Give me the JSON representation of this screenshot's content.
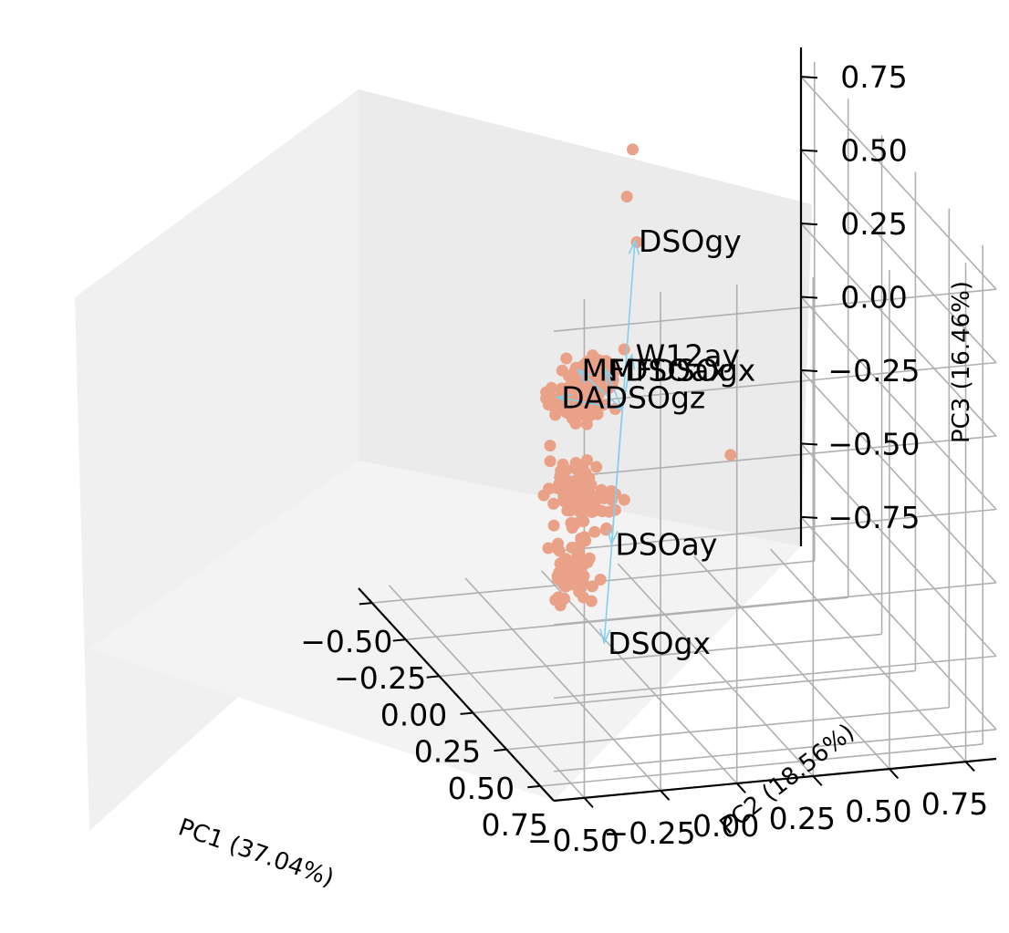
{
  "chart_data": {
    "type": "scatter",
    "subtype": "3d-pca-biplot",
    "title": "",
    "axes": {
      "x": {
        "label": "PC1 (37.04%)",
        "ticks": [
          "−0.50",
          "−0.25",
          "0.00",
          "0.25",
          "0.50",
          "0.75"
        ],
        "range": [
          -0.6,
          0.85
        ]
      },
      "y": {
        "label": "PC2 (18.56%)",
        "ticks": [
          "−0.50",
          "−0.25",
          "0.00",
          "0.25",
          "0.50",
          "0.75"
        ],
        "range": [
          -0.6,
          0.85
        ]
      },
      "z": {
        "label": "PC3 (16.46%)",
        "ticks": [
          "−0.75",
          "−0.50",
          "−0.25",
          "0.00",
          "0.25",
          "0.50",
          "0.75"
        ],
        "range": [
          -0.85,
          0.85
        ]
      }
    },
    "grid": true,
    "point_color": "#e9a287",
    "loading_color": "#87ceeb",
    "loadings": [
      {
        "name": "DSOgy",
        "x": -0.02,
        "y": 0.05,
        "z": 0.56
      },
      {
        "name": "W12ay",
        "x": -0.02,
        "y": 0.04,
        "z": 0.17
      },
      {
        "name": "DSOay",
        "x": 0.01,
        "y": -0.04,
        "z": -0.45
      },
      {
        "name": "DSOgx",
        "x": 0.0,
        "y": -0.06,
        "z": -0.79
      },
      {
        "name": "MFDSOax",
        "x": -0.33,
        "y": 0.0,
        "z": -0.03
      },
      {
        "name": "MFDSOgx",
        "x": -0.35,
        "y": 0.1,
        "z": -0.05
      },
      {
        "name": "DADSOgz",
        "x": -0.3,
        "y": -0.08,
        "z": -0.1
      }
    ]
  }
}
